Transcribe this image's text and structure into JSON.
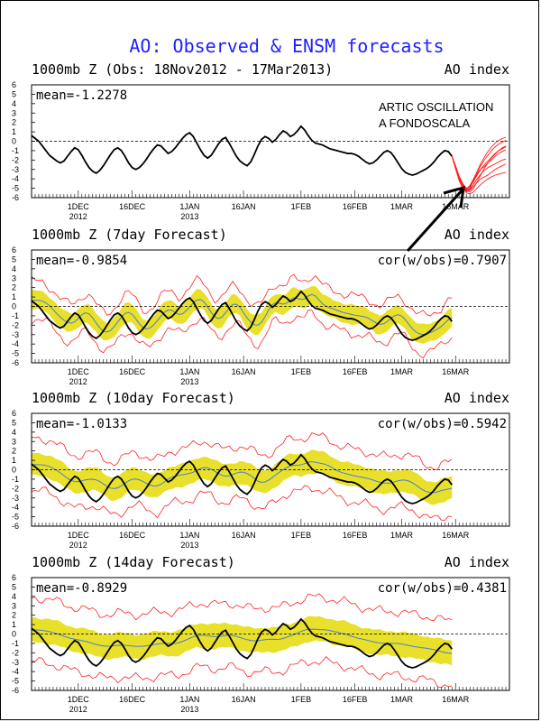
{
  "page_title": "AO: Observed & ENSM forecasts",
  "annotation": {
    "line1": "ARTIC OSCILLATION",
    "line2": "A FONDOSCALA"
  },
  "colors": {
    "title": "#1f1fff",
    "observed": "#000000",
    "ensemble_band": "#e8e02a",
    "ensemble_spread": "#ff2020",
    "ensemble_mean": "#4a7fd0",
    "forecast_members": "#ff2020"
  },
  "chart_data": [
    {
      "type": "line",
      "title": "1000mb Z (Obs: 18Nov2012 - 17Mar2013)",
      "index_label": "AO index",
      "mean_label": "mean=-1.2278",
      "cor_label": "",
      "ylim": [
        -6,
        6
      ],
      "yticks": [
        6,
        5,
        4,
        3,
        2,
        1,
        0,
        -1,
        -2,
        -3,
        -4,
        -5,
        -6
      ],
      "xticks": [
        {
          "day": 13,
          "label": "1DEC",
          "sub": "2012"
        },
        {
          "day": 28,
          "label": "16DEC",
          "sub": ""
        },
        {
          "day": 44,
          "label": "1JAN",
          "sub": "2013"
        },
        {
          "day": 59,
          "label": "16JAN",
          "sub": ""
        },
        {
          "day": 75,
          "label": "1FEB",
          "sub": ""
        },
        {
          "day": 90,
          "label": "16FEB",
          "sub": ""
        },
        {
          "day": 103,
          "label": "1MAR",
          "sub": ""
        },
        {
          "day": 118,
          "label": "16MAR",
          "sub": ""
        }
      ],
      "xlim": [
        0,
        133
      ],
      "observed": [
        0.6,
        0.3,
        0,
        -0.5,
        -1,
        -1.5,
        -1.8,
        -2.1,
        -2.3,
        -2.1,
        -1.6,
        -1.1,
        -0.7,
        -0.9,
        -1.5,
        -2.2,
        -2.8,
        -3.2,
        -3.4,
        -3.1,
        -2.6,
        -2,
        -1.4,
        -0.9,
        -0.7,
        -1,
        -1.6,
        -2.3,
        -2.8,
        -3.0,
        -2.8,
        -2.4,
        -1.9,
        -1.3,
        -0.8,
        -0.4,
        -0.5,
        -0.9,
        -1.3,
        -1.1,
        -0.7,
        -0.2,
        0.3,
        0.7,
        0.9,
        0.5,
        -0.2,
        -0.9,
        -1.5,
        -1.8,
        -1.5,
        -0.9,
        -0.3,
        0.2,
        0.4,
        -0.2,
        -0.9,
        -1.6,
        -2.1,
        -2.4,
        -2.6,
        -2.2,
        -1.4,
        -0.5,
        0.2,
        0.5,
        0.3,
        -0.1,
        0.2,
        0.7,
        1.1,
        0.9,
        0.5,
        0.7,
        1.1,
        1.6,
        1.2,
        0.6,
        0.1,
        -0.2,
        -0.3,
        -0.4,
        -0.6,
        -0.8,
        -0.9,
        -1.0,
        -1.1,
        -1.2,
        -1.3,
        -1.3,
        -1.4,
        -1.6,
        -1.9,
        -2.2,
        -2.4,
        -2.3,
        -2,
        -1.6,
        -1.2,
        -1,
        -1.2,
        -1.7,
        -2.3,
        -2.9,
        -3.3,
        -3.5,
        -3.6,
        -3.5,
        -3.3,
        -3.1,
        -2.9,
        -2.6,
        -2.2,
        -1.7,
        -1.3,
        -1.0,
        -1.1,
        -1.6
      ],
      "forecast_start": 117,
      "forecast_members": [
        [
          -1.6,
          -2.8,
          -4.0,
          -4.8,
          -5.3,
          -5.0,
          -4.2,
          -3.4,
          -2.6,
          -2.0,
          -1.5,
          -1.0,
          -0.6,
          -0.3,
          -0.1,
          0.1
        ],
        [
          -1.6,
          -2.6,
          -3.8,
          -4.6,
          -5.2,
          -5.4,
          -5.0,
          -4.3,
          -3.6,
          -2.9,
          -2.3,
          -1.8,
          -1.4,
          -1.0,
          -0.7,
          -0.5
        ],
        [
          -1.6,
          -2.9,
          -4.2,
          -5.0,
          -5.4,
          -5.1,
          -4.6,
          -4.0,
          -3.5,
          -3.1,
          -2.8,
          -2.6,
          -2.4,
          -2.2,
          -2.0,
          -1.9
        ],
        [
          -1.6,
          -2.7,
          -3.9,
          -4.7,
          -5.1,
          -4.7,
          -4.0,
          -3.2,
          -2.4,
          -1.7,
          -1.1,
          -0.6,
          -0.2,
          0.1,
          0.3,
          0.4
        ],
        [
          -1.6,
          -2.8,
          -4.0,
          -4.9,
          -5.5,
          -5.6,
          -5.4,
          -5.0,
          -4.6,
          -4.3,
          -4.0,
          -3.8,
          -3.6,
          -3.5,
          -3.4,
          -3.3
        ],
        [
          -1.6,
          -2.6,
          -3.7,
          -4.5,
          -5.0,
          -4.9,
          -4.3,
          -3.6,
          -3.0,
          -2.5,
          -2.1,
          -1.7,
          -1.3,
          -1.0,
          -0.8,
          -0.6
        ],
        [
          -1.6,
          -2.9,
          -4.1,
          -4.9,
          -5.2,
          -4.8,
          -4.1,
          -3.5,
          -3.0,
          -2.7,
          -2.3,
          -2.0,
          -1.6,
          -1.3,
          -1.1,
          -0.9
        ],
        [
          -1.6,
          -2.7,
          -3.9,
          -4.8,
          -5.3,
          -5.2,
          -4.8,
          -4.4,
          -4.0,
          -3.8,
          -3.6,
          -3.3,
          -3.0,
          -2.8,
          -2.6,
          -2.4
        ]
      ]
    },
    {
      "type": "line",
      "title": "1000mb Z (7day Forecast)",
      "index_label": "AO index",
      "mean_label": "mean=-0.9854",
      "cor_label": "cor(w/obs)=0.7907",
      "ylim": [
        -6,
        6
      ],
      "yticks": [
        6,
        5,
        4,
        3,
        2,
        1,
        0,
        -1,
        -2,
        -3,
        -4,
        -5,
        -6
      ],
      "xticks": [
        {
          "day": 13,
          "label": "1DEC",
          "sub": "2012"
        },
        {
          "day": 28,
          "label": "16DEC",
          "sub": ""
        },
        {
          "day": 44,
          "label": "1JAN",
          "sub": "2013"
        },
        {
          "day": 59,
          "label": "16JAN",
          "sub": ""
        },
        {
          "day": 75,
          "label": "1FEB",
          "sub": ""
        },
        {
          "day": 90,
          "label": "16FEB",
          "sub": ""
        },
        {
          "day": 103,
          "label": "1MAR",
          "sub": ""
        },
        {
          "day": 118,
          "label": "16MAR",
          "sub": ""
        }
      ],
      "xlim": [
        0,
        133
      ],
      "observed_end": 118,
      "band_halfwidth": 1.0,
      "spread_halfwidth": 2.0,
      "mean_offset": 0.4,
      "mean_lag": 3,
      "mean_smooth": 1
    },
    {
      "type": "line",
      "title": "1000mb Z (10day Forecast)",
      "index_label": "AO index",
      "mean_label": "mean=-1.0133",
      "cor_label": "cor(w/obs)=0.5942",
      "ylim": [
        -6,
        6
      ],
      "yticks": [
        6,
        5,
        4,
        3,
        2,
        1,
        0,
        -1,
        -2,
        -3,
        -4,
        -5,
        -6
      ],
      "xticks": [
        {
          "day": 13,
          "label": "1DEC",
          "sub": "2012"
        },
        {
          "day": 28,
          "label": "16DEC",
          "sub": ""
        },
        {
          "day": 44,
          "label": "1JAN",
          "sub": "2013"
        },
        {
          "day": 59,
          "label": "16JAN",
          "sub": ""
        },
        {
          "day": 75,
          "label": "1FEB",
          "sub": ""
        },
        {
          "day": 90,
          "label": "16FEB",
          "sub": ""
        },
        {
          "day": 103,
          "label": "1MAR",
          "sub": ""
        },
        {
          "day": 118,
          "label": "16MAR",
          "sub": ""
        }
      ],
      "xlim": [
        0,
        133
      ],
      "observed_end": 118,
      "band_halfwidth": 1.2,
      "spread_halfwidth": 2.8,
      "mean_offset": 0.3,
      "mean_lag": 5,
      "mean_smooth": 3
    },
    {
      "type": "line",
      "title": "1000mb Z (14day Forecast)",
      "index_label": "AO index",
      "mean_label": "mean=-0.8929",
      "cor_label": "cor(w/obs)=0.4381",
      "ylim": [
        -6,
        6
      ],
      "yticks": [
        6,
        5,
        4,
        3,
        2,
        1,
        0,
        -1,
        -2,
        -3,
        -4,
        -5,
        -6
      ],
      "xticks": [
        {
          "day": 13,
          "label": "1DEC",
          "sub": "2012"
        },
        {
          "day": 28,
          "label": "16DEC",
          "sub": ""
        },
        {
          "day": 44,
          "label": "1JAN",
          "sub": "2013"
        },
        {
          "day": 59,
          "label": "16JAN",
          "sub": ""
        },
        {
          "day": 75,
          "label": "1FEB",
          "sub": ""
        },
        {
          "day": 90,
          "label": "16FEB",
          "sub": ""
        },
        {
          "day": 103,
          "label": "1MAR",
          "sub": ""
        },
        {
          "day": 118,
          "label": "16MAR",
          "sub": ""
        }
      ],
      "xlim": [
        0,
        133
      ],
      "observed_end": 118,
      "band_halfwidth": 1.3,
      "spread_halfwidth": 3.4,
      "mean_offset": 0.2,
      "mean_lag": 7,
      "mean_smooth": 6
    }
  ]
}
